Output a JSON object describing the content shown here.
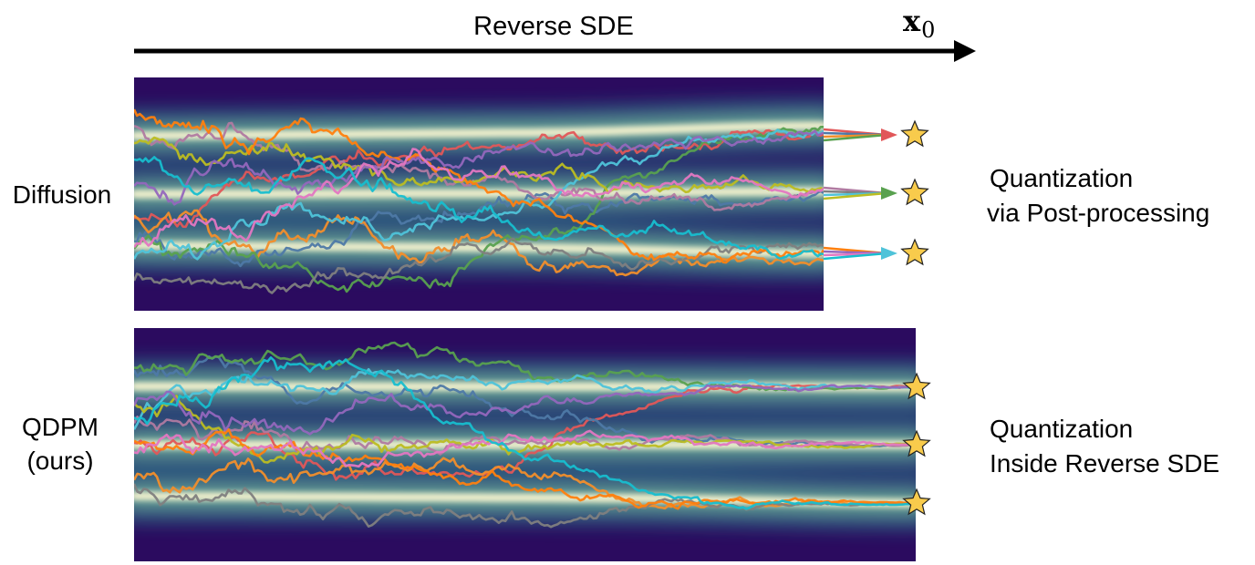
{
  "header": {
    "arrow_label": "Reverse SDE",
    "x0_symbol": "x",
    "x0_subscript": "0"
  },
  "panels": [
    {
      "id": "diffusion",
      "label_lines": [
        "Diffusion"
      ],
      "caption_lines": [
        "Quantization",
        "via Post-processing"
      ],
      "quantization": "post-processing",
      "num_modes": 3,
      "num_trajectories": 12
    },
    {
      "id": "qdpm",
      "label_lines": [
        "QDPM",
        "(ours)"
      ],
      "caption_lines": [
        "Quantization",
        "Inside Reverse SDE"
      ],
      "quantization": "inside-sde",
      "num_modes": 3,
      "num_trajectories": 12
    }
  ],
  "colors": {
    "background": "#2a0a5e",
    "band_glow": "#fdf7d2",
    "star_fill": "#f8cb4c",
    "star_stroke": "#222222",
    "trajectories": [
      "#e15759",
      "#4e79a7",
      "#f28e2b",
      "#59a14f",
      "#b07aa1",
      "#7f7f7f",
      "#4fc3d9",
      "#bcbd22",
      "#ff7f0e",
      "#9467bd",
      "#e377c2",
      "#17becf"
    ]
  },
  "icons": {
    "target": "star-icon",
    "direction": "arrow-right-icon"
  }
}
